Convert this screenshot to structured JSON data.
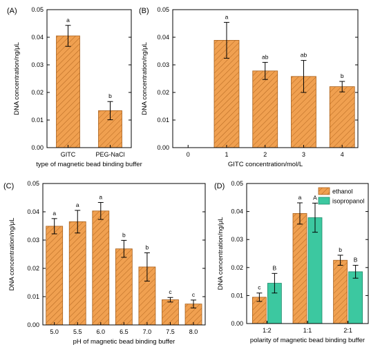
{
  "chart_data": [
    {
      "panel": "(A)",
      "type": "bar",
      "categories": [
        "GITC",
        "PEG-NaCl"
      ],
      "values": [
        0.0405,
        0.0134
      ],
      "errors": [
        0.0038,
        0.0033
      ],
      "significance": [
        "a",
        "b"
      ],
      "xlabel": "type of magnetic bead binding buffer",
      "ylabel": "DNA concentration/ng/μL",
      "ylim": [
        0,
        0.05
      ],
      "yticks": [
        "0.00",
        "0.01",
        "0.02",
        "0.03",
        "0.04",
        "0.05"
      ],
      "bar_color": "#f0a050",
      "hatch": true
    },
    {
      "panel": "(B)",
      "type": "bar",
      "categories": [
        "0",
        "1",
        "2",
        "3",
        "4"
      ],
      "values": [
        0,
        0.0389,
        0.0278,
        0.0258,
        0.0221
      ],
      "errors": [
        0,
        0.0065,
        0.0031,
        0.0058,
        0.0019
      ],
      "significance": [
        "",
        "a",
        "ab",
        "ab",
        "b"
      ],
      "xlabel": "GITC concentration/mol/L",
      "ylabel": "DNA concentration/ng/μL",
      "ylim": [
        0,
        0.05
      ],
      "yticks": [
        "0.00",
        "0.01",
        "0.02",
        "0.03",
        "0.04",
        "0.05"
      ],
      "bar_color": "#f0a050",
      "hatch": true
    },
    {
      "panel": "(C)",
      "type": "bar",
      "categories": [
        "5.0",
        "5.5",
        "6.0",
        "6.5",
        "7.0",
        "7.5",
        "8.0"
      ],
      "values": [
        0.0349,
        0.0365,
        0.0403,
        0.0269,
        0.0205,
        0.0089,
        0.0074
      ],
      "errors": [
        0.0027,
        0.004,
        0.003,
        0.003,
        0.005,
        0.0008,
        0.0014
      ],
      "significance": [
        "a",
        "a",
        "a",
        "b",
        "b",
        "c",
        "c"
      ],
      "xlabel": "pH of magnetic bead binding buffer",
      "ylabel": "DNA concentration/ng/μL",
      "ylim": [
        0,
        0.05
      ],
      "yticks": [
        "0.00",
        "0.01",
        "0.02",
        "0.03",
        "0.04",
        "0.05"
      ],
      "bar_color": "#f0a050",
      "hatch": true
    },
    {
      "panel": "(D)",
      "type": "bar",
      "categories": [
        "1:2",
        "1:1",
        "2:1"
      ],
      "series": [
        {
          "name": "ethanol",
          "values": [
            0.0094,
            0.0393,
            0.0226
          ],
          "errors": [
            0.0015,
            0.0038,
            0.0018
          ],
          "significance": [
            "c",
            "a",
            "b"
          ],
          "color": "#f0a050",
          "hatch": true
        },
        {
          "name": "isopropanol",
          "values": [
            0.0144,
            0.0378,
            0.0185
          ],
          "errors": [
            0.0035,
            0.0052,
            0.0023
          ],
          "significance": [
            "B",
            "A",
            "B"
          ],
          "color": "#3cc8a0",
          "hatch": false
        }
      ],
      "xlabel": "polarity of magnetic bead binding buffer",
      "ylabel": "DNA concentration/ng/μL",
      "ylim": [
        0,
        0.05
      ],
      "yticks": [
        "0.00",
        "0.01",
        "0.02",
        "0.03",
        "0.04",
        "0.05"
      ],
      "legend": "top-right"
    }
  ]
}
